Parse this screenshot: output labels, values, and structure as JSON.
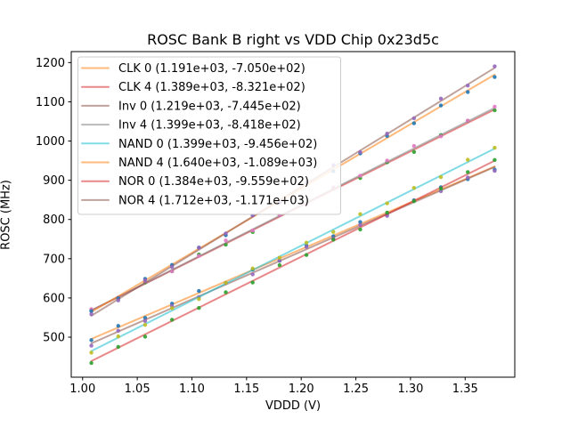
{
  "title": "ROSC Bank B right vs VDD Chip 0x23d5c",
  "xlabel": "VDDD (V)",
  "ylabel": "ROSC (MHz)",
  "chart_data": {
    "type": "scatter",
    "title": "ROSC Bank B right vs VDD Chip 0x23d5c",
    "xlabel": "VDDD (V)",
    "ylabel": "ROSC (MHz)",
    "xlim": [
      0.9896,
      1.3954
    ],
    "ylim": [
      398,
      1228
    ],
    "xticks": [
      1.0,
      1.05,
      1.1,
      1.15,
      1.2,
      1.25,
      1.3,
      1.35
    ],
    "xtick_labels": [
      "1.00",
      "1.05",
      "1.10",
      "1.15",
      "1.20",
      "1.25",
      "1.30",
      "1.35"
    ],
    "yticks": [
      500,
      600,
      700,
      800,
      900,
      1000,
      1100,
      1200
    ],
    "ytick_labels": [
      "500",
      "600",
      "700",
      "800",
      "900",
      "1000",
      "1100",
      "1200"
    ],
    "grid": false,
    "legend_position": "upper-left",
    "note": "scatter y values = slope*x + intercept + noise[i]; fit lines use slope/intercept exactly",
    "x": [
      1.008,
      1.0326,
      1.0572,
      1.0818,
      1.1064,
      1.131,
      1.1556,
      1.1802,
      1.2048,
      1.2294,
      1.254,
      1.2786,
      1.3032,
      1.3278,
      1.3524,
      1.377
    ],
    "series": [
      {
        "name": "CLK 0",
        "label": "CLK 0 (1.191e+03, -7.050e+02)",
        "slope": 1191,
        "intercept": -705.0,
        "line_color": "#ff7f0e",
        "marker_color": "#1f77b4",
        "noise": [
          -3,
          4,
          -5,
          2,
          5,
          -4,
          1,
          -6,
          4,
          -2,
          5,
          -4,
          2,
          6,
          -3,
          -8
        ]
      },
      {
        "name": "CLK 4",
        "label": "CLK 4 (1.389e+03, -8.321e+02)",
        "slope": 1389,
        "intercept": -832.1,
        "line_color": "#d62728",
        "marker_color": "#2ca02c",
        "noise": [
          2,
          -4,
          3,
          -2,
          6,
          -3,
          -5,
          4,
          -1,
          5,
          -4,
          2,
          -6,
          3,
          5,
          -2
        ]
      },
      {
        "name": "Inv 0",
        "label": "Inv 0 (1.219e+03, -7.445e+02)",
        "slope": 1219,
        "intercept": -744.5,
        "line_color": "#8c564b",
        "marker_color": "#9467bd",
        "noise": [
          -6,
          2,
          -3,
          5,
          -2,
          4,
          -4,
          1,
          6,
          -3,
          2,
          -5,
          4,
          -2,
          3,
          -10
        ]
      },
      {
        "name": "Inv 4",
        "label": "Inv 4 (1.399e+03, -8.418e+02)",
        "slope": 1399,
        "intercept": -841.8,
        "line_color": "#7f7f7f",
        "marker_color": "#e377c2",
        "noise": [
          3,
          -2,
          5,
          -4,
          1,
          6,
          -3,
          2,
          -5,
          4,
          -1,
          3,
          6,
          -4,
          2,
          3
        ]
      },
      {
        "name": "NAND 0",
        "label": "NAND 0 (1.399e+03, -9.456e+02)",
        "slope": 1399,
        "intercept": -945.6,
        "line_color": "#17becf",
        "marker_color": "#bcbd22",
        "noise": [
          -4,
          3,
          -2,
          6,
          -5,
          2,
          4,
          -3,
          1,
          -6,
          5,
          -2,
          3,
          -4,
          6,
          2
        ]
      },
      {
        "name": "NAND 4",
        "label": "NAND 4 (1.640e+03, -1.089e+03)",
        "slope": 1640,
        "intercept": -1089.0,
        "line_color": "#ff7f0e",
        "marker_color": "#1f77b4",
        "noise": [
          2,
          -5,
          4,
          -1,
          3,
          -6,
          5,
          -2,
          6,
          -4,
          1,
          5,
          -3,
          2,
          -4,
          -6
        ]
      },
      {
        "name": "NOR 0",
        "label": "NOR 0 (1.384e+03, -9.559e+02)",
        "slope": 1384,
        "intercept": -955.9,
        "line_color": "#d62728",
        "marker_color": "#2ca02c",
        "noise": [
          -5,
          2,
          -6,
          3,
          -1,
          5,
          -4,
          6,
          -2,
          3,
          -5,
          4,
          -1,
          -3,
          5,
          2
        ]
      },
      {
        "name": "NOR 4",
        "label": "NOR 4 (1.712e+03, -1.171e+03)",
        "slope": 1712,
        "intercept": -1171.0,
        "line_color": "#8c564b",
        "marker_color": "#9467bd",
        "noise": [
          4,
          -3,
          6,
          -2,
          5,
          -1,
          3,
          -6,
          2,
          5,
          -4,
          1,
          -2,
          6,
          -3,
          4
        ]
      }
    ],
    "style": {
      "line_alpha": 0.55,
      "line_width": 2,
      "marker_radius": 2.2,
      "spine_color": "#000000",
      "legend_edge_color": "#cccccc",
      "legend_face": "rgba(255,255,255,0.85)"
    }
  }
}
